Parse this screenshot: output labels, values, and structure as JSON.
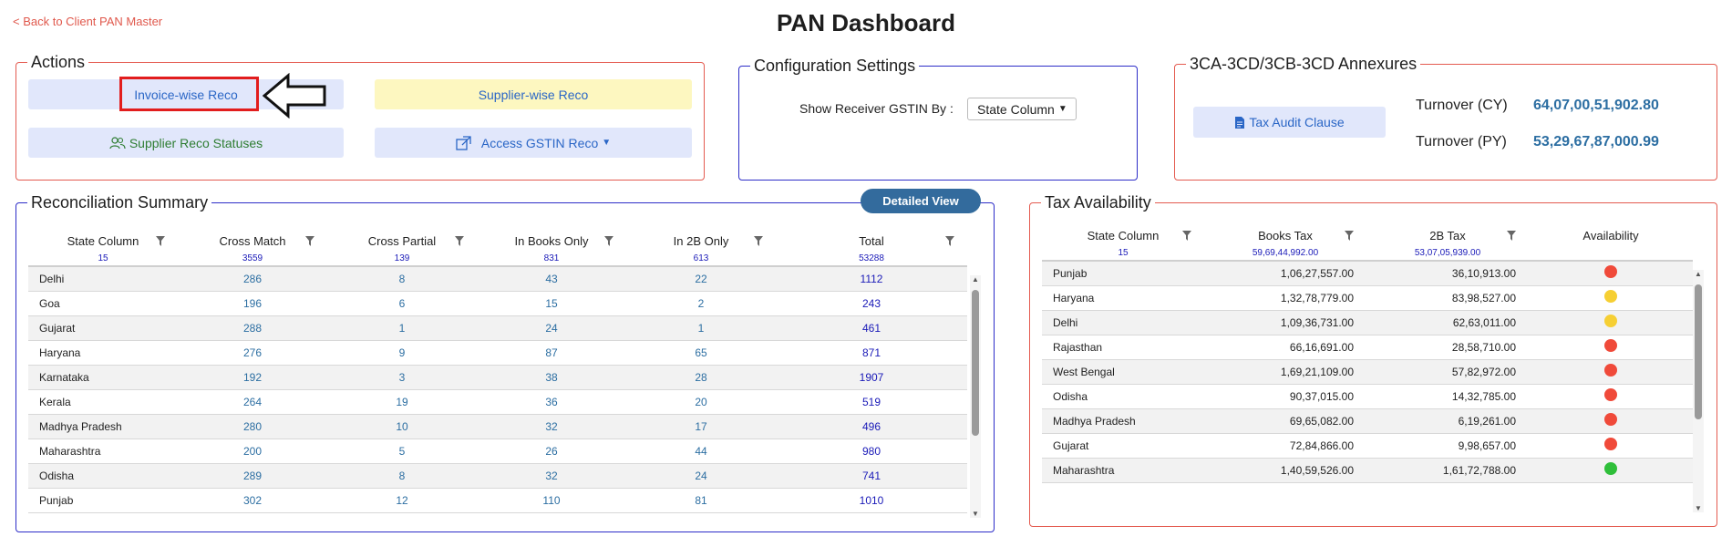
{
  "page": {
    "back_link": "< Back to Client PAN Master",
    "title": "PAN Dashboard"
  },
  "actions": {
    "legend": "Actions",
    "invoice_wise": "Invoice-wise Reco",
    "supplier_wise": "Supplier-wise Reco",
    "supplier_statuses": "Supplier Reco Statuses",
    "access_gstin": "Access GSTIN Reco"
  },
  "config": {
    "legend": "Configuration Settings",
    "label": "Show Receiver GSTIN By :",
    "selected": "State Column"
  },
  "annexures": {
    "legend": "3CA-3CD/3CB-3CD Annexures",
    "button": "Tax Audit Clause",
    "turnover_cy_label": "Turnover (CY)",
    "turnover_cy_value": "64,07,00,51,902.80",
    "turnover_py_label": "Turnover (PY)",
    "turnover_py_value": "53,29,67,87,000.99"
  },
  "reco": {
    "legend": "Reconciliation Summary",
    "detailed_view": "Detailed View",
    "headers": [
      "State Column",
      "Cross Match",
      "Cross Partial",
      "In Books Only",
      "In 2B Only",
      "Total"
    ],
    "counts": [
      "15",
      "3559",
      "139",
      "831",
      "613",
      "53288"
    ],
    "rows": [
      [
        "Delhi",
        "286",
        "8",
        "43",
        "22",
        "1112"
      ],
      [
        "Goa",
        "196",
        "6",
        "15",
        "2",
        "243"
      ],
      [
        "Gujarat",
        "288",
        "1",
        "24",
        "1",
        "461"
      ],
      [
        "Haryana",
        "276",
        "9",
        "87",
        "65",
        "871"
      ],
      [
        "Karnataka",
        "192",
        "3",
        "38",
        "28",
        "1907"
      ],
      [
        "Kerala",
        "264",
        "19",
        "36",
        "20",
        "519"
      ],
      [
        "Madhya Pradesh",
        "280",
        "10",
        "32",
        "17",
        "496"
      ],
      [
        "Maharashtra",
        "200",
        "5",
        "26",
        "44",
        "980"
      ],
      [
        "Odisha",
        "289",
        "8",
        "32",
        "24",
        "741"
      ],
      [
        "Punjab",
        "302",
        "12",
        "110",
        "81",
        "1010"
      ]
    ]
  },
  "tax": {
    "legend": "Tax Availability",
    "headers": [
      "State Column",
      "Books Tax",
      "2B Tax",
      "Availability"
    ],
    "counts": [
      "15",
      "59,69,44,992.00",
      "53,07,05,939.00",
      ""
    ],
    "colors": {
      "red": "#f04a3a",
      "yellow": "#f6cf33",
      "green": "#2fbf3a"
    },
    "rows": [
      [
        "Punjab",
        "1,06,27,557.00",
        "36,10,913.00",
        "red"
      ],
      [
        "Haryana",
        "1,32,78,779.00",
        "83,98,527.00",
        "yellow"
      ],
      [
        "Delhi",
        "1,09,36,731.00",
        "62,63,011.00",
        "yellow"
      ],
      [
        "Rajasthan",
        "66,16,691.00",
        "28,58,710.00",
        "red"
      ],
      [
        "West Bengal",
        "1,69,21,109.00",
        "57,82,972.00",
        "red"
      ],
      [
        "Odisha",
        "90,37,015.00",
        "14,32,785.00",
        "red"
      ],
      [
        "Madhya Pradesh",
        "69,65,082.00",
        "6,19,261.00",
        "red"
      ],
      [
        "Gujarat",
        "72,84,866.00",
        "9,98,657.00",
        "red"
      ],
      [
        "Maharashtra",
        "1,40,59,526.00",
        "1,61,72,788.00",
        "green"
      ]
    ]
  }
}
